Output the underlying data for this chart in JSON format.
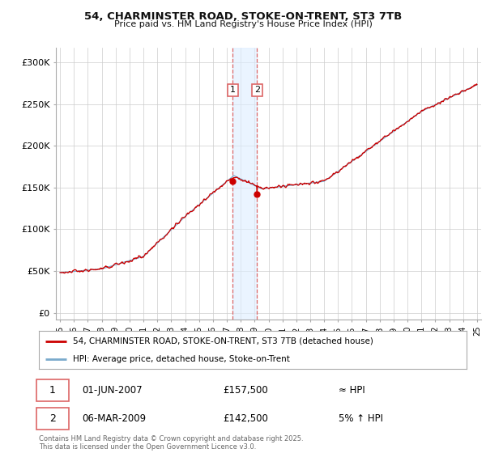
{
  "title_line1": "54, CHARMINSTER ROAD, STOKE-ON-TRENT, ST3 7TB",
  "title_line2": "Price paid vs. HM Land Registry's House Price Index (HPI)",
  "background_color": "#ffffff",
  "plot_bg_color": "#ffffff",
  "grid_color": "#cccccc",
  "red_line_color": "#cc0000",
  "blue_line_color": "#7aaacc",
  "shade_color": "#ddeeff",
  "shade_alpha": 0.6,
  "dashed_color": "#dd6666",
  "yticks": [
    0,
    50000,
    100000,
    150000,
    200000,
    250000,
    300000
  ],
  "ytick_labels": [
    "£0",
    "£50K",
    "£100K",
    "£150K",
    "£200K",
    "£250K",
    "£300K"
  ],
  "x_start_year": 1995,
  "x_end_year": 2025,
  "sale1_year": 2007.42,
  "sale1_price": 157500,
  "sale2_year": 2009.17,
  "sale2_price": 142500,
  "legend_label1": "54, CHARMINSTER ROAD, STOKE-ON-TRENT, ST3 7TB (detached house)",
  "legend_label2": "HPI: Average price, detached house, Stoke-on-Trent",
  "annotation1_num": "1",
  "annotation1_date": "01-JUN-2007",
  "annotation1_price": "£157,500",
  "annotation1_hpi": "≈ HPI",
  "annotation2_num": "2",
  "annotation2_date": "06-MAR-2009",
  "annotation2_price": "£142,500",
  "annotation2_hpi": "5% ↑ HPI",
  "copyright_text": "Contains HM Land Registry data © Crown copyright and database right 2025.\nThis data is licensed under the Open Government Licence v3.0.",
  "font_family": "DejaVu Sans",
  "marker_color": "#cc0000"
}
